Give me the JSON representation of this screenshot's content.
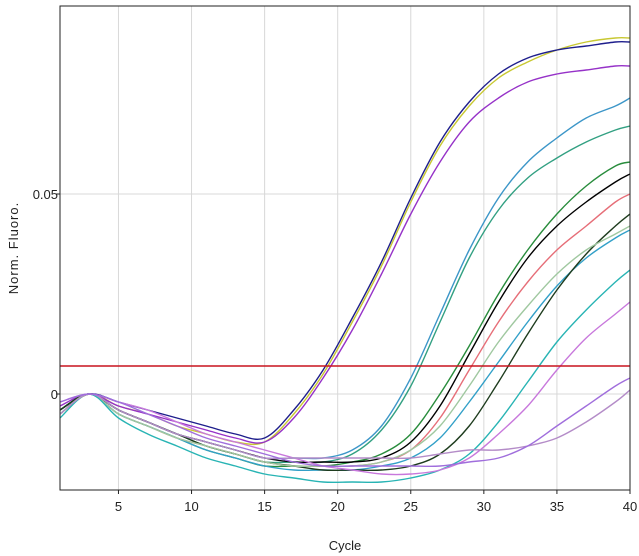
{
  "chart_data": {
    "type": "line",
    "xlabel": "Cycle",
    "ylabel": "Norm. Fluoro.",
    "xlim": [
      1,
      40
    ],
    "ylim": [
      -0.024,
      0.097
    ],
    "x_ticks": [
      5,
      10,
      15,
      20,
      25,
      30,
      35,
      40
    ],
    "x_tick_labels": [
      "5",
      "10",
      "15",
      "20",
      "25",
      "30",
      "35",
      "40"
    ],
    "y_ticks": [
      0,
      0.05
    ],
    "y_tick_labels": [
      "0",
      "0.05"
    ],
    "grid": true,
    "threshold": {
      "y": 0.007,
      "color": "#c8141e"
    },
    "x": [
      1,
      3,
      5,
      7,
      9,
      11,
      13,
      15,
      17,
      19,
      21,
      23,
      25,
      27,
      29,
      31,
      33,
      35,
      37,
      39,
      40
    ],
    "series": [
      {
        "color": "#c8c832",
        "values": [
          -0.005,
          0.0,
          -0.003,
          -0.005,
          -0.008,
          -0.01,
          -0.012,
          -0.012,
          -0.005,
          0.005,
          0.018,
          0.032,
          0.048,
          0.062,
          0.072,
          0.079,
          0.083,
          0.086,
          0.088,
          0.089,
          0.089
        ]
      },
      {
        "color": "#1e1e8c",
        "values": [
          -0.004,
          0.0,
          -0.002,
          -0.004,
          -0.006,
          -0.008,
          -0.01,
          -0.011,
          -0.004,
          0.006,
          0.019,
          0.033,
          0.049,
          0.063,
          0.073,
          0.08,
          0.084,
          0.086,
          0.087,
          0.088,
          0.088
        ]
      },
      {
        "color": "#9632c8",
        "values": [
          -0.003,
          0.0,
          -0.003,
          -0.005,
          -0.007,
          -0.009,
          -0.011,
          -0.012,
          -0.006,
          0.004,
          0.016,
          0.03,
          0.045,
          0.058,
          0.068,
          0.074,
          0.078,
          0.08,
          0.081,
          0.082,
          0.082
        ]
      },
      {
        "color": "#3c96c8",
        "values": [
          -0.004,
          0.0,
          -0.004,
          -0.007,
          -0.01,
          -0.012,
          -0.014,
          -0.016,
          -0.016,
          -0.016,
          -0.014,
          -0.008,
          0.004,
          0.02,
          0.036,
          0.049,
          0.058,
          0.064,
          0.069,
          0.072,
          0.074
        ]
      },
      {
        "color": "#32a082",
        "values": [
          -0.004,
          0.0,
          -0.004,
          -0.007,
          -0.01,
          -0.013,
          -0.015,
          -0.017,
          -0.017,
          -0.017,
          -0.015,
          -0.009,
          0.002,
          0.018,
          0.034,
          0.046,
          0.054,
          0.059,
          0.063,
          0.066,
          0.067
        ]
      },
      {
        "color": "#288c3c",
        "values": [
          -0.005,
          0.0,
          -0.005,
          -0.008,
          -0.011,
          -0.014,
          -0.016,
          -0.018,
          -0.018,
          -0.018,
          -0.017,
          -0.015,
          -0.01,
          0.0,
          0.012,
          0.025,
          0.036,
          0.045,
          0.052,
          0.057,
          0.058
        ]
      },
      {
        "color": "#000000",
        "values": [
          -0.004,
          0.0,
          -0.004,
          -0.007,
          -0.01,
          -0.012,
          -0.014,
          -0.016,
          -0.017,
          -0.017,
          -0.017,
          -0.016,
          -0.012,
          -0.003,
          0.01,
          0.023,
          0.034,
          0.042,
          0.048,
          0.053,
          0.055
        ]
      },
      {
        "color": "#e66e78",
        "values": [
          -0.005,
          0.0,
          -0.005,
          -0.008,
          -0.011,
          -0.013,
          -0.015,
          -0.017,
          -0.018,
          -0.018,
          -0.018,
          -0.017,
          -0.014,
          -0.006,
          0.006,
          0.018,
          0.028,
          0.036,
          0.042,
          0.048,
          0.05
        ]
      },
      {
        "color": "#32a0c8",
        "values": [
          -0.005,
          0.0,
          -0.005,
          -0.008,
          -0.011,
          -0.014,
          -0.016,
          -0.018,
          -0.019,
          -0.019,
          -0.019,
          -0.018,
          -0.016,
          -0.011,
          -0.002,
          0.008,
          0.018,
          0.027,
          0.034,
          0.039,
          0.041
        ]
      },
      {
        "color": "#1e3c1e",
        "values": [
          -0.004,
          0.0,
          -0.004,
          -0.007,
          -0.01,
          -0.013,
          -0.015,
          -0.017,
          -0.018,
          -0.019,
          -0.019,
          -0.019,
          -0.018,
          -0.015,
          -0.008,
          0.003,
          0.015,
          0.026,
          0.035,
          0.042,
          0.045
        ]
      },
      {
        "color": "#a0c8a0",
        "values": [
          -0.005,
          0.0,
          -0.005,
          -0.008,
          -0.011,
          -0.013,
          -0.015,
          -0.017,
          -0.018,
          -0.018,
          -0.018,
          -0.017,
          -0.014,
          -0.008,
          0.002,
          0.013,
          0.022,
          0.03,
          0.036,
          0.04,
          0.042
        ]
      },
      {
        "color": "#28b4b4",
        "values": [
          -0.006,
          0.0,
          -0.006,
          -0.01,
          -0.013,
          -0.016,
          -0.018,
          -0.02,
          -0.021,
          -0.022,
          -0.022,
          -0.022,
          -0.021,
          -0.019,
          -0.015,
          -0.007,
          0.003,
          0.013,
          0.021,
          0.028,
          0.031
        ]
      },
      {
        "color": "#c878dc",
        "values": [
          -0.002,
          0.0,
          -0.002,
          -0.004,
          -0.007,
          -0.01,
          -0.012,
          -0.014,
          -0.016,
          -0.018,
          -0.019,
          -0.02,
          -0.02,
          -0.019,
          -0.016,
          -0.01,
          -0.003,
          0.006,
          0.014,
          0.02,
          0.023
        ]
      },
      {
        "color": "#b48cc8",
        "values": [
          -0.005,
          0.0,
          -0.004,
          -0.007,
          -0.01,
          -0.012,
          -0.014,
          -0.016,
          -0.016,
          -0.016,
          -0.016,
          -0.016,
          -0.016,
          -0.015,
          -0.014,
          -0.014,
          -0.013,
          -0.011,
          -0.007,
          -0.002,
          0.001
        ]
      },
      {
        "color": "#a06edc",
        "values": [
          -0.002,
          0.0,
          -0.002,
          -0.005,
          -0.008,
          -0.011,
          -0.013,
          -0.015,
          -0.017,
          -0.018,
          -0.018,
          -0.018,
          -0.018,
          -0.018,
          -0.017,
          -0.016,
          -0.013,
          -0.008,
          -0.003,
          0.002,
          0.004
        ]
      }
    ]
  }
}
